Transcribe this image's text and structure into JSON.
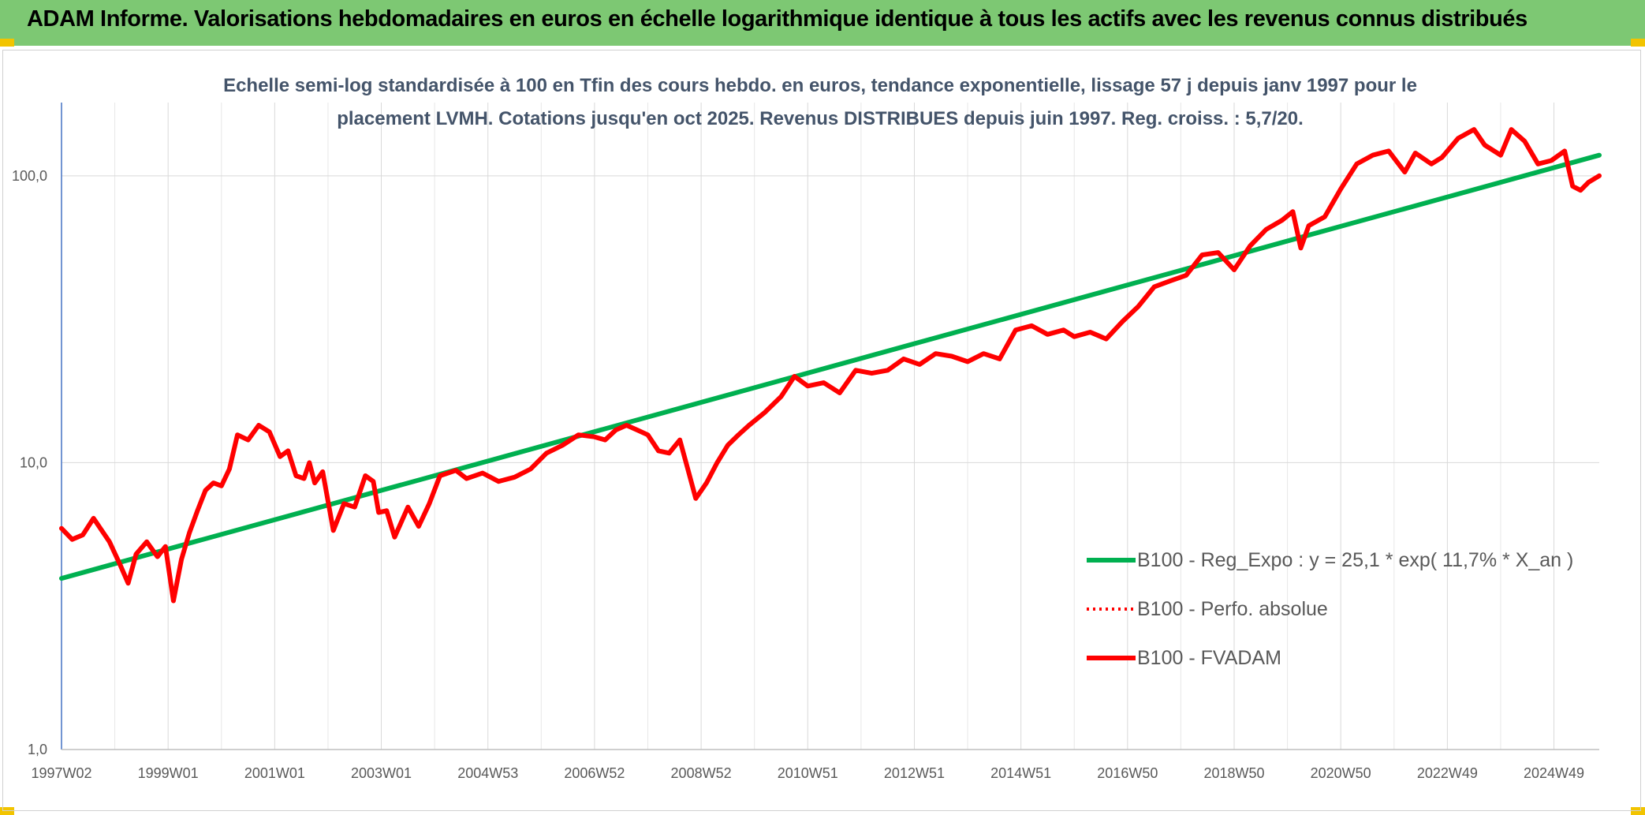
{
  "header": {
    "title": "ADAM Informe. Valorisations hebdomadaires en euros en échelle logarithmique identique à tous les actifs avec les revenus connus distribués"
  },
  "colors": {
    "banner": "#7dc873",
    "corner": "#f2c400",
    "trend": "#00b050",
    "fvadam": "#ff0000",
    "perfo": "#ff0000"
  },
  "chart_data": {
    "type": "line",
    "subtitle_lines": [
      "Echelle semi-log standardisée à 100 en Tfin des cours hebdo. en euros, tendance exponentielle, lissage 57 j depuis janv 1997 pour le",
      "placement LVMH. Cotations jusqu'en oct 2025. Revenus DISTRIBUES depuis juin 1997. Reg. croiss. : 5,7/20."
    ],
    "y_scale": "log",
    "ylim": [
      1,
      180
    ],
    "y_ticks": [
      {
        "value": 1,
        "label": "1,0"
      },
      {
        "value": 10,
        "label": "10,0"
      },
      {
        "value": 100,
        "label": "100,0"
      }
    ],
    "xlim": [
      1997.0,
      2025.85
    ],
    "x_ticks": [
      {
        "x": 1997.0,
        "label": "1997W02"
      },
      {
        "x": 1999.0,
        "label": "1999W01"
      },
      {
        "x": 2001.0,
        "label": "2001W01"
      },
      {
        "x": 2003.0,
        "label": "2003W01"
      },
      {
        "x": 2005.0,
        "label": "2004W53"
      },
      {
        "x": 2007.0,
        "label": "2006W52"
      },
      {
        "x": 2009.0,
        "label": "2008W52"
      },
      {
        "x": 2011.0,
        "label": "2010W51"
      },
      {
        "x": 2013.0,
        "label": "2012W51"
      },
      {
        "x": 2015.0,
        "label": "2014W51"
      },
      {
        "x": 2017.0,
        "label": "2016W50"
      },
      {
        "x": 2019.0,
        "label": "2018W50"
      },
      {
        "x": 2021.0,
        "label": "2020W50"
      },
      {
        "x": 2023.0,
        "label": "2022W49"
      },
      {
        "x": 2025.0,
        "label": "2024W49"
      }
    ],
    "grid": true,
    "legend_position": "bottom-right",
    "series": [
      {
        "name": "B100 - Reg_Expo : y = 25,1 * exp( 11,7% *  X_an )",
        "style": "solid",
        "color": "#00b050",
        "x": [
          1997.0,
          2025.85
        ],
        "y": [
          3.95,
          118
        ]
      },
      {
        "name": "B100 - Perfo. absolue",
        "style": "dotted",
        "color": "#ff0000",
        "x": [],
        "y": []
      },
      {
        "name": "B100 - FVADAM",
        "style": "solid",
        "color": "#ff0000",
        "x": [
          1997.0,
          1997.2,
          1997.4,
          1997.6,
          1997.9,
          1998.1,
          1998.25,
          1998.4,
          1998.6,
          1998.8,
          1998.95,
          1999.1,
          1999.25,
          1999.4,
          1999.55,
          1999.7,
          1999.85,
          2000.0,
          2000.15,
          2000.3,
          2000.5,
          2000.7,
          2000.9,
          2001.1,
          2001.25,
          2001.4,
          2001.55,
          2001.65,
          2001.75,
          2001.9,
          2002.1,
          2002.3,
          2002.5,
          2002.7,
          2002.85,
          2002.95,
          2003.1,
          2003.25,
          2003.5,
          2003.7,
          2003.9,
          2004.1,
          2004.4,
          2004.6,
          2004.9,
          2005.2,
          2005.5,
          2005.8,
          2006.1,
          2006.4,
          2006.7,
          2007.0,
          2007.2,
          2007.4,
          2007.6,
          2007.8,
          2008.0,
          2008.2,
          2008.4,
          2008.6,
          2008.75,
          2008.9,
          2009.1,
          2009.3,
          2009.5,
          2009.7,
          2009.9,
          2010.2,
          2010.5,
          2010.75,
          2011.0,
          2011.3,
          2011.6,
          2011.9,
          2012.2,
          2012.5,
          2012.8,
          2013.1,
          2013.4,
          2013.7,
          2014.0,
          2014.3,
          2014.6,
          2014.9,
          2015.2,
          2015.5,
          2015.8,
          2016.0,
          2016.3,
          2016.6,
          2016.9,
          2017.2,
          2017.5,
          2017.8,
          2018.1,
          2018.4,
          2018.7,
          2019.0,
          2019.3,
          2019.6,
          2019.9,
          2020.1,
          2020.25,
          2020.4,
          2020.7,
          2021.0,
          2021.3,
          2021.6,
          2021.9,
          2022.2,
          2022.4,
          2022.7,
          2022.9,
          2023.2,
          2023.5,
          2023.7,
          2024.0,
          2024.2,
          2024.45,
          2024.7,
          2024.95,
          2025.2,
          2025.35,
          2025.5,
          2025.65,
          2025.85
        ],
        "y": [
          5.9,
          5.4,
          5.6,
          6.4,
          5.3,
          4.4,
          3.8,
          4.8,
          5.3,
          4.7,
          5.1,
          3.3,
          4.6,
          5.7,
          6.8,
          8.0,
          8.5,
          8.3,
          9.5,
          12.5,
          12.0,
          13.5,
          12.8,
          10.5,
          11.0,
          9.0,
          8.8,
          10.0,
          8.5,
          9.3,
          5.8,
          7.2,
          7.0,
          9.0,
          8.6,
          6.7,
          6.8,
          5.5,
          7.0,
          6.0,
          7.2,
          9.0,
          9.4,
          8.8,
          9.2,
          8.6,
          8.9,
          9.5,
          10.8,
          11.5,
          12.5,
          12.3,
          12.0,
          13.0,
          13.5,
          13.0,
          12.5,
          11.0,
          10.8,
          12.0,
          9.5,
          7.5,
          8.5,
          10.0,
          11.5,
          12.5,
          13.5,
          15.0,
          17.0,
          20.0,
          18.5,
          19.0,
          17.5,
          21.0,
          20.5,
          21.0,
          23.0,
          22.0,
          24.0,
          23.5,
          22.5,
          24.0,
          23.0,
          29.0,
          30.0,
          28.0,
          29.0,
          27.5,
          28.5,
          27.0,
          31.0,
          35.0,
          41.0,
          43.0,
          45.0,
          53.0,
          54.0,
          47.0,
          57.0,
          65.0,
          70.0,
          75.0,
          56.0,
          67.0,
          72.0,
          90.0,
          110.0,
          118.0,
          122.0,
          103.0,
          120.0,
          110.0,
          116.0,
          135.0,
          145.0,
          128.0,
          118.0,
          145.0,
          132.0,
          110.0,
          113.0,
          122.0,
          92.0,
          89.0,
          95.0,
          100.0
        ]
      }
    ]
  }
}
